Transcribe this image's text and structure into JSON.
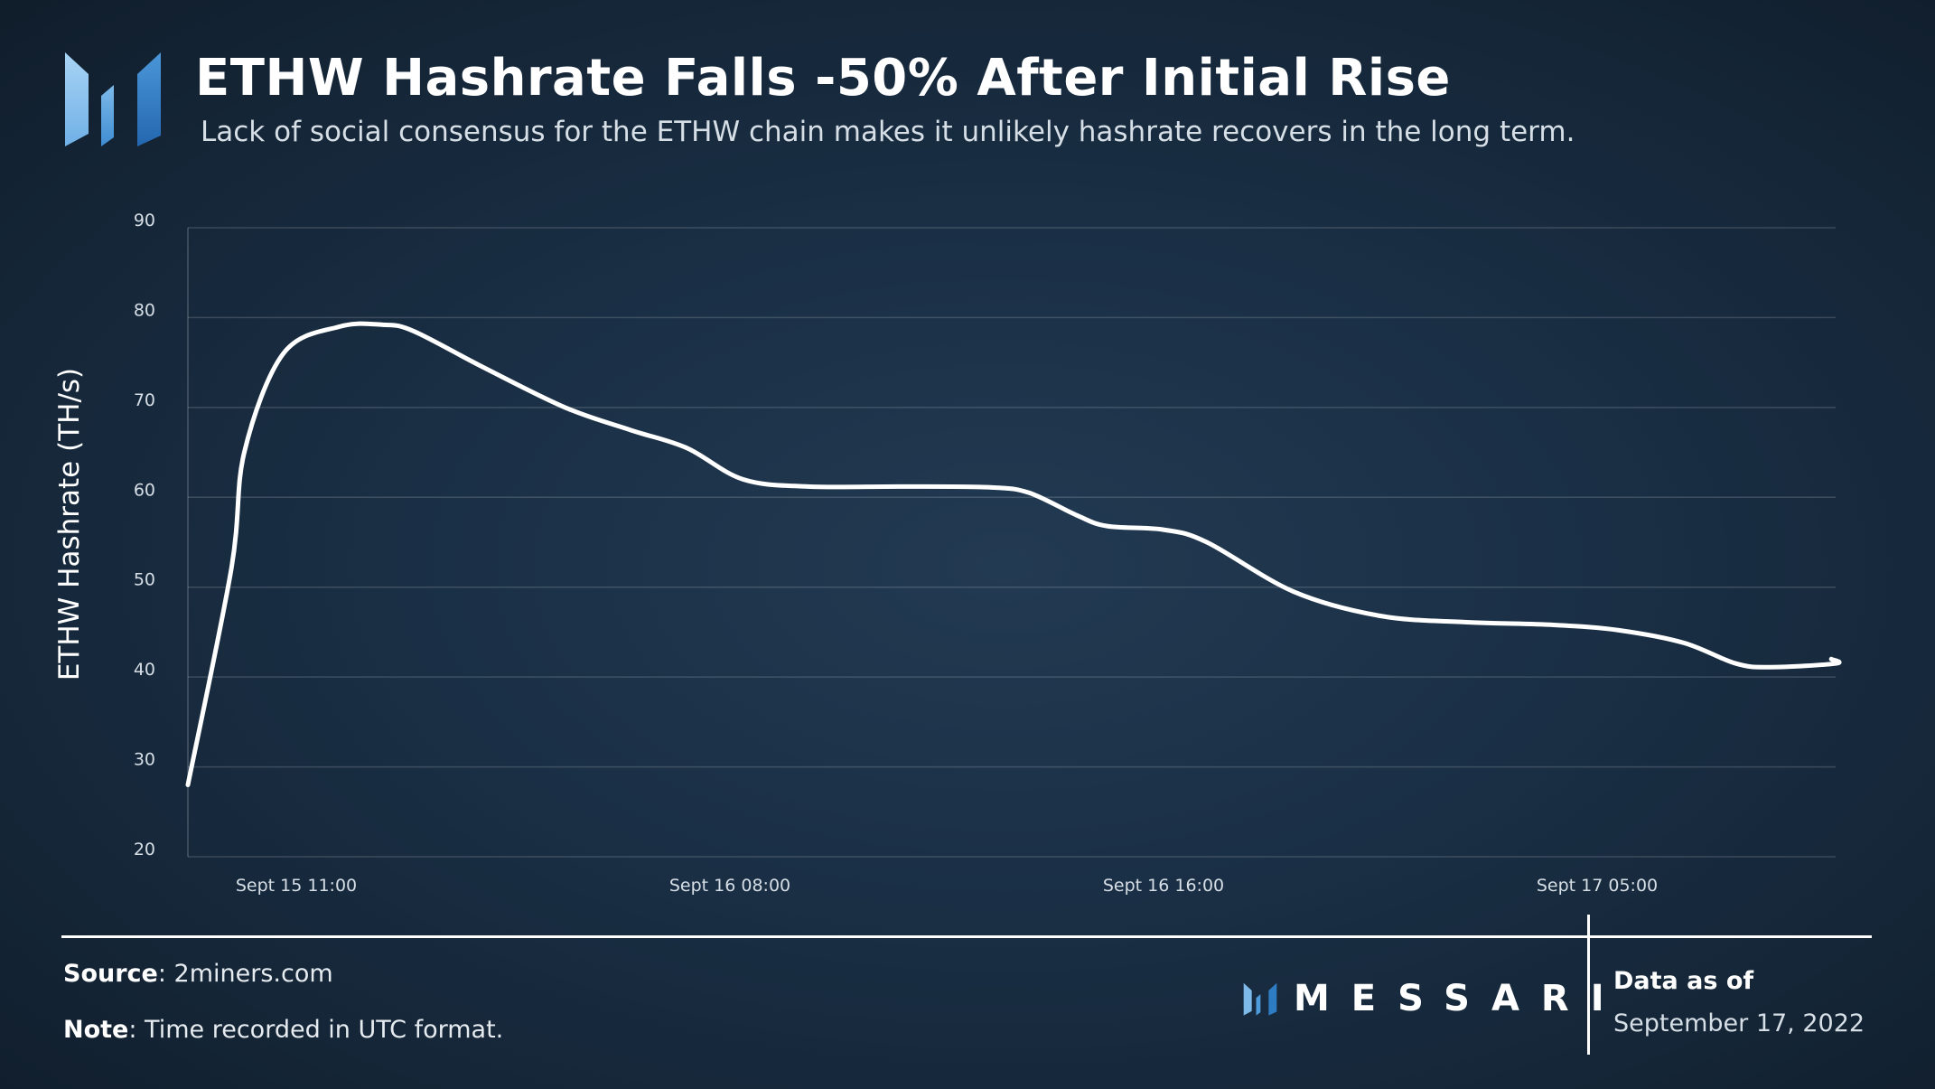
{
  "header": {
    "title": "ETHW Hashrate Falls -50% After Initial Rise",
    "subtitle": "Lack of social consensus for the ETHW chain makes it unlikely hashrate recovers in the long term."
  },
  "chart_data": {
    "type": "line",
    "title": "ETHW Hashrate Falls -50% After Initial Rise",
    "subtitle": "Lack of social consensus for the ETHW chain makes it unlikely hashrate recovers in the long term.",
    "xlabel": "",
    "ylabel": "ETHW Hashrate (TH/s)",
    "ylim": [
      20,
      90
    ],
    "yticks": [
      20,
      30,
      40,
      50,
      60,
      70,
      80,
      90
    ],
    "xticks": [
      {
        "label": "Sept 15 11:00",
        "x": 2.5
      },
      {
        "label": "Sept 16 08:00",
        "x": 12.5
      },
      {
        "label": "Sept 16 16:00",
        "x": 22.5
      },
      {
        "label": "Sept 17 05:00",
        "x": 32.5
      }
    ],
    "grid": true,
    "line_color": "#ffffff",
    "series": [
      {
        "name": "",
        "x": [
          0,
          1,
          1.3,
          2.2,
          3.5,
          4.5,
          5.2,
          6.8,
          8.7,
          10.2,
          11.5,
          12.8,
          14.3,
          16.5,
          18.5,
          19.4,
          20.5,
          21.2,
          22.5,
          23.5,
          25.5,
          27.5,
          29.5,
          31.5,
          33,
          34.5,
          35.7,
          36.5,
          38,
          37.9
        ],
        "values": [
          28,
          52,
          65,
          76,
          79,
          79.2,
          78.5,
          74.5,
          70,
          67.5,
          65.5,
          62,
          61.2,
          61.2,
          61.1,
          60.5,
          58,
          56.8,
          56.4,
          55,
          49.5,
          46.8,
          46.1,
          45.8,
          45.2,
          43.8,
          41.5,
          41.1,
          41.5,
          42
        ]
      }
    ]
  },
  "footer": {
    "source_label": "Source",
    "source_value": ": 2miners.com",
    "note_label": "Note",
    "note_value": ": Time recorded in UTC format.",
    "brand": "MESSARI",
    "asof_label": "Data as of",
    "asof_date": "September 17, 2022"
  },
  "colors": {
    "background": "#1a2f45",
    "logo_light": "#8fc3ee",
    "logo_mid": "#5aa0dc",
    "logo_dark": "#2e7cc4"
  },
  "icons": {
    "header_logo": "messari-logo-icon",
    "footer_logo": "messari-small-logo-icon"
  }
}
